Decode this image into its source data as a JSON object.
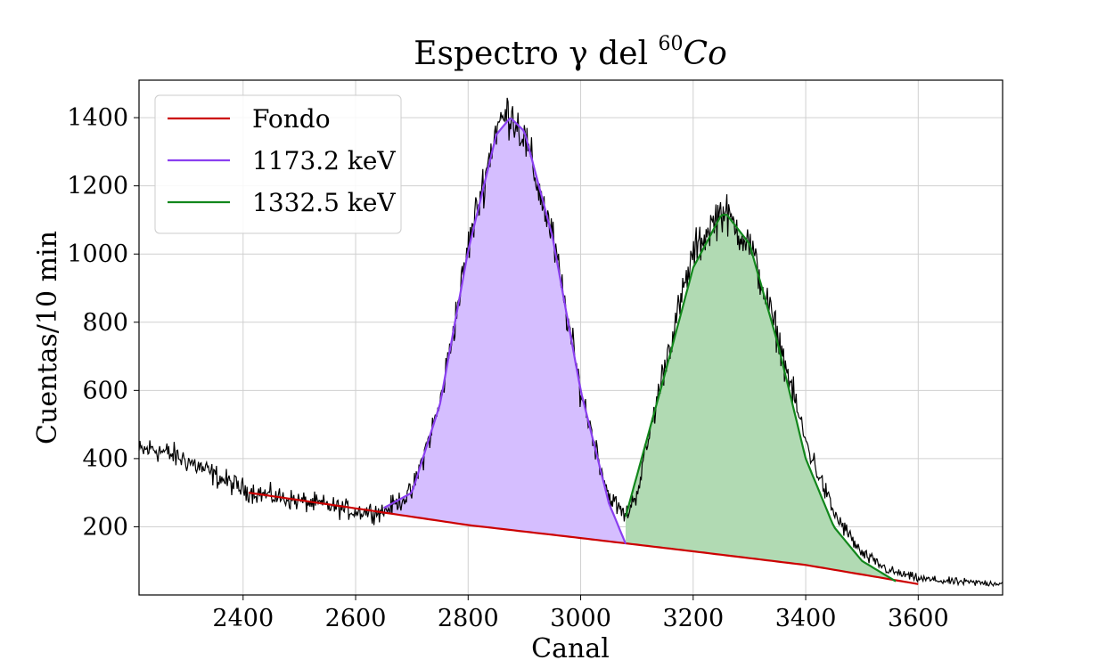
{
  "chart_data": {
    "type": "line",
    "title": {
      "main": "Espectro γ del ",
      "sup": "60",
      "italic": "Co"
    },
    "xlabel": "Canal",
    "ylabel": "Cuentas/10 min",
    "xlim": [
      2215,
      3750
    ],
    "ylim": [
      0,
      1510
    ],
    "xticks": [
      2400,
      2600,
      2800,
      3000,
      3200,
      3400,
      3600
    ],
    "yticks": [
      200,
      400,
      600,
      800,
      1000,
      1200,
      1400
    ],
    "grid": true,
    "legend_position": "top-left",
    "colors": {
      "data": "#000000",
      "background": "#cc0000",
      "peak1": "#8a3ff0",
      "peak1_fill": "#d5beff",
      "peak2": "#12871c",
      "peak2_fill": "#b1dab3"
    },
    "legend": [
      {
        "label": "Fondo",
        "color": "#cc0000"
      },
      {
        "label": "1173.2 keV",
        "color": "#8a3ff0"
      },
      {
        "label": "1332.5 keV",
        "color": "#12871c"
      }
    ],
    "series": [
      {
        "name": "Fondo",
        "x": [
          2410,
          2600,
          2800,
          3000,
          3200,
          3400,
          3600
        ],
        "y": [
          300,
          254,
          205,
          167,
          128,
          88,
          32
        ]
      },
      {
        "name": "1173.2 keV",
        "x": [
          2650,
          2700,
          2750,
          2800,
          2850,
          2875,
          2900,
          2950,
          3000,
          3050,
          3080
        ],
        "y": [
          255,
          300,
          560,
          1010,
          1350,
          1400,
          1360,
          1050,
          600,
          270,
          150
        ]
      },
      {
        "name": "1332.5 keV",
        "x": [
          3080,
          3150,
          3200,
          3250,
          3260,
          3300,
          3350,
          3400,
          3450,
          3500,
          3560
        ],
        "y": [
          230,
          650,
          960,
          1115,
          1115,
          1030,
          740,
          400,
          200,
          100,
          40
        ]
      },
      {
        "name": "data",
        "x": [
          2215,
          2240,
          2300,
          2350,
          2400,
          2450,
          2500,
          2550,
          2600,
          2650,
          2700,
          2750,
          2800,
          2850,
          2875,
          2900,
          2950,
          3000,
          3050,
          3080,
          3100,
          3150,
          3200,
          3250,
          3260,
          3300,
          3350,
          3400,
          3450,
          3500,
          3550,
          3600,
          3650,
          3700,
          3750
        ],
        "y": [
          420,
          430,
          395,
          350,
          310,
          290,
          275,
          262,
          245,
          245,
          300,
          560,
          1020,
          1370,
          1420,
          1340,
          1050,
          600,
          290,
          230,
          300,
          680,
          1000,
          1130,
          1110,
          1030,
          760,
          450,
          240,
          120,
          70,
          48,
          40,
          36,
          34
        ]
      }
    ]
  }
}
